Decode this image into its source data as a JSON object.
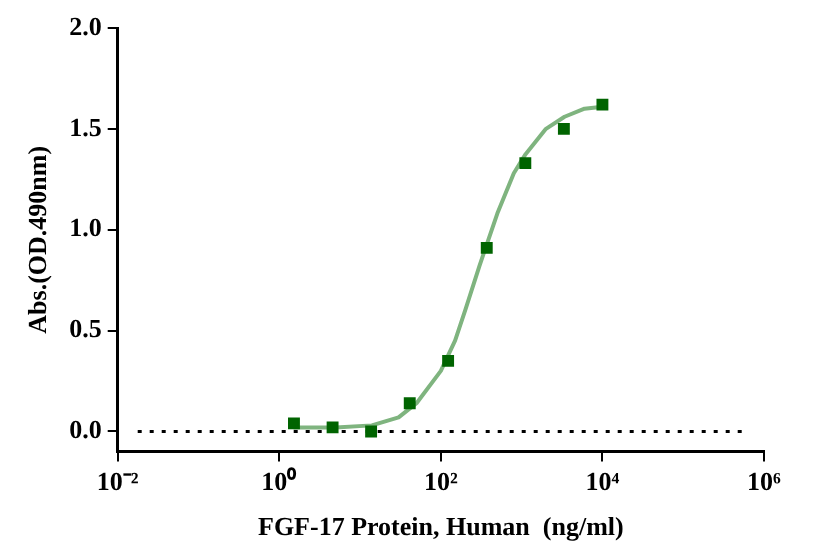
{
  "chart_data": {
    "type": "scatter",
    "xlabel": "FGF-17 Protein, Human  (ng/ml)",
    "ylabel": "Abs.(OD.490nm)",
    "series": [
      {
        "type": "scatter",
        "color": "#006400",
        "marker": "square",
        "x": [
          1.52,
          4.57,
          13.7,
          41.2,
          123,
          370,
          1111,
          3333,
          10000
        ],
        "values": [
          0.04,
          0.02,
          0.0,
          0.14,
          0.35,
          0.91,
          1.33,
          1.5,
          1.62
        ]
      },
      {
        "type": "line",
        "color": "#7fb47f",
        "marker": "none",
        "x": [
          1.5,
          5,
          14,
          30,
          50,
          100,
          150,
          200,
          300,
          500,
          800,
          1100,
          2000,
          3400,
          6000,
          10000
        ],
        "values": [
          0.02,
          0.02,
          0.03,
          0.07,
          0.14,
          0.3,
          0.45,
          0.6,
          0.82,
          1.08,
          1.28,
          1.37,
          1.5,
          1.56,
          1.6,
          1.61
        ]
      }
    ],
    "log": "x",
    "xlim": [
      0.01,
      1000000
    ],
    "xticks": [
      {
        "value": 0.01,
        "label": "10⁻²"
      },
      {
        "value": 1,
        "label": "10⁰"
      },
      {
        "value": 100,
        "label": "10²"
      },
      {
        "value": 10000,
        "label": "10⁴"
      },
      {
        "value": 1000000,
        "label": "10⁶"
      }
    ],
    "ylim": [
      -0.1,
      2.0
    ],
    "yticks": [
      {
        "value": 0,
        "label": "0.0"
      },
      {
        "value": 0.5,
        "label": "0.5"
      },
      {
        "value": 1,
        "label": "1.0"
      },
      {
        "value": 1.5,
        "label": "1.5"
      },
      {
        "value": 2,
        "label": "2.0"
      }
    ],
    "ref_lines": [
      {
        "axis": "y",
        "value": 0,
        "color": "#000000",
        "line_style": "dotted"
      }
    ],
    "grid": false,
    "legend": false
  }
}
